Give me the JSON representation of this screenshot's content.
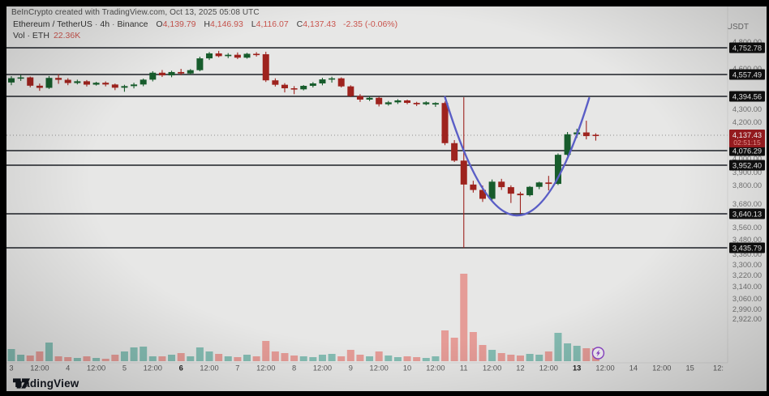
{
  "watermark": "BeInCrypto created with TradingView.com, Oct 13, 2025 05:08 UTC",
  "legend": {
    "symbol": "Ethereum / TetherUS",
    "separator": "·",
    "interval": "4h",
    "exchange": "Binance",
    "o_label": "O",
    "o_value": "4,139.79",
    "h_label": "H",
    "h_value": "4,146.93",
    "l_label": "L",
    "l_value": "4,116.07",
    "c_label": "C",
    "c_value": "4,137.43",
    "change": "-2.35 (-0.06%)"
  },
  "volume_row": {
    "label": "Vol · ETH",
    "value": "22.36K"
  },
  "price_axis": {
    "currency": "USDT"
  },
  "footer": {
    "brand": "TradingView"
  },
  "colors": {
    "panel_bg": "#e7e7e6",
    "up": "#175c2c",
    "down": "#9e231e",
    "vol_up": "#7fbbb0",
    "vol_down": "#e59892",
    "curve": "#5a5ec6",
    "level_line": "#1d2026",
    "badge_bg": "#101010",
    "badge_text": "#f2f2f2",
    "last_badge_bg": "#9c1c20",
    "last_badge_text": "#ffffff",
    "countdown_text": "#ef9a95",
    "axis_text": "#757575",
    "time_text": "#5a5a5a",
    "time_text_bold": "#1f1f1f",
    "legend_red": "#c9554e",
    "marker": "#8d44c9"
  },
  "chart_data": {
    "type": "candlestick",
    "symbol": "Ethereum / TetherUS (ETH/USDT)",
    "exchange": "Binance",
    "interval": "4h",
    "quote_currency": "USDT",
    "candles_format": "[open, high, low, close, volume_rel]",
    "candles": [
      [
        4498,
        4545,
        4478,
        4530,
        15
      ],
      [
        4530,
        4556,
        4510,
        4536,
        8
      ],
      [
        4536,
        4542,
        4462,
        4474,
        7
      ],
      [
        4474,
        4490,
        4436,
        4458,
        12
      ],
      [
        4458,
        4546,
        4450,
        4532,
        23
      ],
      [
        4532,
        4561,
        4488,
        4518,
        6
      ],
      [
        4518,
        4530,
        4478,
        4494,
        5
      ],
      [
        4494,
        4519,
        4484,
        4507,
        4
      ],
      [
        4507,
        4516,
        4468,
        4482,
        6
      ],
      [
        4482,
        4503,
        4475,
        4496,
        4
      ],
      [
        4496,
        4506,
        4469,
        4483,
        3
      ],
      [
        4483,
        4490,
        4441,
        4459,
        8
      ],
      [
        4459,
        4481,
        4429,
        4471,
        12
      ],
      [
        4471,
        4496,
        4454,
        4483,
        17
      ],
      [
        4483,
        4527,
        4470,
        4519,
        18
      ],
      [
        4519,
        4582,
        4506,
        4571,
        6
      ],
      [
        4571,
        4591,
        4539,
        4551,
        6
      ],
      [
        4551,
        4586,
        4537,
        4576,
        8
      ],
      [
        4576,
        4600,
        4552,
        4565,
        10
      ],
      [
        4565,
        4598,
        4556,
        4590,
        6
      ],
      [
        4590,
        4688,
        4582,
        4676,
        17
      ],
      [
        4676,
        4722,
        4664,
        4712,
        12
      ],
      [
        4712,
        4730,
        4684,
        4692,
        9
      ],
      [
        4692,
        4714,
        4678,
        4702,
        6
      ],
      [
        4702,
        4719,
        4671,
        4681,
        5
      ],
      [
        4681,
        4716,
        4674,
        4709,
        8
      ],
      [
        4709,
        4721,
        4689,
        4706,
        6
      ],
      [
        4706,
        4724,
        4502,
        4514,
        25
      ],
      [
        4514,
        4529,
        4468,
        4481,
        12
      ],
      [
        4481,
        4493,
        4424,
        4455,
        10
      ],
      [
        4455,
        4471,
        4411,
        4447,
        7
      ],
      [
        4447,
        4479,
        4439,
        4473,
        6
      ],
      [
        4473,
        4501,
        4461,
        4491,
        5
      ],
      [
        4491,
        4533,
        4477,
        4521,
        8
      ],
      [
        4521,
        4541,
        4497,
        4529,
        9
      ],
      [
        4529,
        4536,
        4461,
        4469,
        6
      ],
      [
        4469,
        4477,
        4389,
        4397,
        14
      ],
      [
        4397,
        4411,
        4354,
        4371,
        8
      ],
      [
        4371,
        4397,
        4361,
        4384,
        6
      ],
      [
        4384,
        4391,
        4321,
        4337,
        12
      ],
      [
        4337,
        4361,
        4327,
        4351,
        7
      ],
      [
        4351,
        4374,
        4339,
        4365,
        5
      ],
      [
        4365,
        4371,
        4337,
        4347,
        6
      ],
      [
        4347,
        4355,
        4324,
        4337,
        5
      ],
      [
        4337,
        4359,
        4329,
        4351,
        4
      ],
      [
        4335,
        4352,
        4318,
        4346,
        6
      ],
      [
        4346,
        4357,
        4098,
        4106,
        38
      ],
      [
        4106,
        4118,
        3976,
        3986,
        29
      ],
      [
        3986,
        4388,
        3435,
        3807,
        108
      ],
      [
        3807,
        3836,
        3754,
        3771,
        36
      ],
      [
        3771,
        3799,
        3694,
        3714,
        20
      ],
      [
        3714,
        3846,
        3704,
        3829,
        14
      ],
      [
        3829,
        3851,
        3771,
        3789,
        10
      ],
      [
        3789,
        3801,
        3687,
        3747,
        8
      ],
      [
        3747,
        3759,
        3641,
        3737,
        7
      ],
      [
        3737,
        3796,
        3729,
        3791,
        9
      ],
      [
        3791,
        3829,
        3776,
        3823,
        8
      ],
      [
        3823,
        3874,
        3768,
        3812,
        12
      ],
      [
        3812,
        4050,
        3803,
        4037,
        35
      ],
      [
        4037,
        4153,
        4028,
        4142,
        22
      ],
      [
        4142,
        4169,
        4127,
        4151,
        19
      ],
      [
        4151,
        4212,
        4121,
        4134,
        16
      ],
      [
        4139.79,
        4146.93,
        4116.07,
        4137.43,
        16
      ]
    ],
    "horizontal_levels": [
      4752.78,
      4557.49,
      4394.56,
      4076.29,
      3952.4,
      3640.13,
      3435.79
    ],
    "last_price": 4137.43,
    "last_price_label": "4,137.43",
    "countdown": "02:51:15",
    "axis_ticks": [
      4800,
      4600,
      4300,
      4200,
      4000,
      3900,
      3800,
      3680,
      3560,
      3480,
      3380,
      3300,
      3220,
      3140,
      3060,
      2990,
      2922
    ],
    "time_ticks": [
      {
        "label": "3",
        "index": 0,
        "bold": false
      },
      {
        "label": "12:00",
        "index": 3,
        "bold": false
      },
      {
        "label": "4",
        "index": 6,
        "bold": false
      },
      {
        "label": "12:00",
        "index": 9,
        "bold": false
      },
      {
        "label": "5",
        "index": 12,
        "bold": false
      },
      {
        "label": "12:00",
        "index": 15,
        "bold": false
      },
      {
        "label": "6",
        "index": 18,
        "bold": true
      },
      {
        "label": "12:00",
        "index": 21,
        "bold": false
      },
      {
        "label": "7",
        "index": 24,
        "bold": false
      },
      {
        "label": "12:00",
        "index": 27,
        "bold": false
      },
      {
        "label": "8",
        "index": 30,
        "bold": false
      },
      {
        "label": "12:00",
        "index": 33,
        "bold": false
      },
      {
        "label": "9",
        "index": 36,
        "bold": false
      },
      {
        "label": "12:00",
        "index": 39,
        "bold": false
      },
      {
        "label": "10",
        "index": 42,
        "bold": false
      },
      {
        "label": "12:00",
        "index": 45,
        "bold": false
      },
      {
        "label": "11",
        "index": 48,
        "bold": false
      },
      {
        "label": "12:00",
        "index": 51,
        "bold": false
      },
      {
        "label": "12",
        "index": 54,
        "bold": false
      },
      {
        "label": "12:00",
        "index": 57,
        "bold": false
      },
      {
        "label": "13",
        "index": 60,
        "bold": true
      },
      {
        "label": "12:00",
        "index": 63,
        "bold": false
      },
      {
        "label": "14",
        "index": 66,
        "bold": false
      },
      {
        "label": "12:00",
        "index": 69,
        "bold": false
      },
      {
        "label": "15",
        "index": 72,
        "bold": false
      },
      {
        "label": "12:",
        "index": 75,
        "bold": false
      }
    ],
    "cup_curve": {
      "shape": "parabolic cup drawing",
      "left_index": 46,
      "right_index": 61.3,
      "left_price": 4390,
      "right_price": 4382,
      "bottom_price": 3640
    },
    "marker": {
      "type": "lightning-circle",
      "at_index": 62
    }
  }
}
